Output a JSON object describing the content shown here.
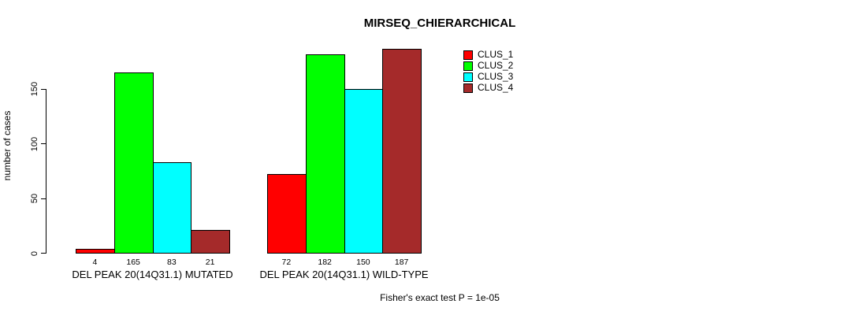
{
  "title": "MIRSEQ_CHIERARCHICAL",
  "chart_data": {
    "type": "bar",
    "title": "MIRSEQ_CHIERARCHICAL",
    "ylabel": "number of cases",
    "xlabel": "",
    "categories": [
      "DEL PEAK 20(14Q31.1) MUTATED",
      "DEL PEAK 20(14Q31.1) WILD-TYPE"
    ],
    "series": [
      {
        "name": "CLUS_1",
        "color": "#ff0000",
        "values": [
          4,
          72
        ]
      },
      {
        "name": "CLUS_2",
        "color": "#00ff00",
        "values": [
          165,
          182
        ]
      },
      {
        "name": "CLUS_3",
        "color": "#00ffff",
        "values": [
          83,
          150
        ]
      },
      {
        "name": "CLUS_4",
        "color": "#a52a2a",
        "values": [
          21,
          187
        ]
      }
    ],
    "bar_value_labels": [
      [
        4,
        165,
        83,
        21
      ],
      [
        72,
        182,
        150,
        187
      ]
    ],
    "yticks": [
      0,
      50,
      100,
      150
    ],
    "ylim": [
      0,
      190
    ],
    "grid": false,
    "legend_position": "top-right",
    "annotation": "Fisher's exact test P = 1e-05"
  }
}
